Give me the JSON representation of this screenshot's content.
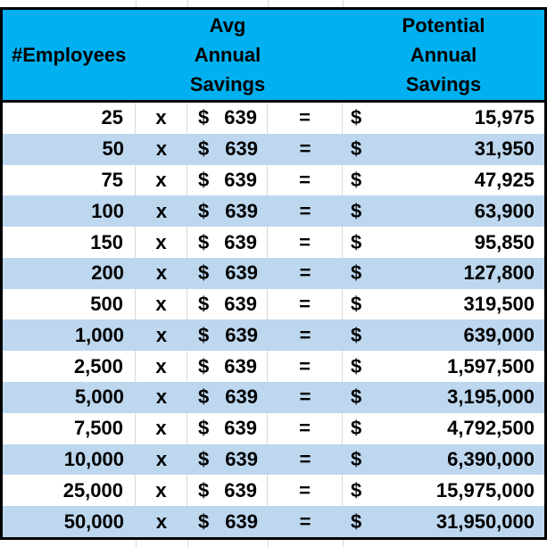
{
  "colors": {
    "header_bg": "#00B0F0",
    "band_row_bg": "#BDD7EE",
    "plain_row_bg": "#FFFFFF",
    "border": "#000000",
    "gridline": "#D9D9D9",
    "text": "#000000"
  },
  "table": {
    "header": {
      "employees": "#Employees",
      "avg": [
        "Avg",
        "Annual",
        "Savings"
      ],
      "potential": [
        "Potential",
        "Annual",
        "Savings"
      ]
    },
    "symbols": {
      "multiply": "x",
      "equals": "=",
      "currency": "$"
    },
    "rate": "639",
    "rows": [
      {
        "employees": "25",
        "result": "15,975"
      },
      {
        "employees": "50",
        "result": "31,950"
      },
      {
        "employees": "75",
        "result": "47,925"
      },
      {
        "employees": "100",
        "result": "63,900"
      },
      {
        "employees": "150",
        "result": "95,850"
      },
      {
        "employees": "200",
        "result": "127,800"
      },
      {
        "employees": "500",
        "result": "319,500"
      },
      {
        "employees": "1,000",
        "result": "639,000"
      },
      {
        "employees": "2,500",
        "result": "1,597,500"
      },
      {
        "employees": "5,000",
        "result": "3,195,000"
      },
      {
        "employees": "7,500",
        "result": "4,792,500"
      },
      {
        "employees": "10,000",
        "result": "6,390,000"
      },
      {
        "employees": "25,000",
        "result": "15,975,000"
      },
      {
        "employees": "50,000",
        "result": "31,950,000"
      }
    ]
  },
  "chart_data": {
    "type": "table",
    "title": "",
    "columns": [
      "#Employees",
      "x",
      "Avg Annual Savings",
      "=",
      "Potential Annual Savings"
    ],
    "employees": [
      25,
      50,
      75,
      100,
      150,
      200,
      500,
      1000,
      2500,
      5000,
      7500,
      10000,
      25000,
      50000
    ],
    "avg_annual_savings_usd": 639,
    "potential_annual_savings_usd": [
      15975,
      31950,
      47925,
      63900,
      95850,
      127800,
      319500,
      639000,
      1597500,
      3195000,
      4792500,
      6390000,
      15975000,
      31950000
    ],
    "layout_hints": {
      "banded_rows": true,
      "band_color": "#BDD7EE",
      "header_color": "#00B0F0"
    }
  }
}
